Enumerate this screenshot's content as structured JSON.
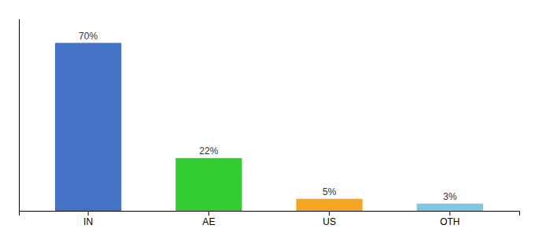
{
  "chart_data": {
    "type": "bar",
    "categories": [
      "IN",
      "AE",
      "US",
      "OTH"
    ],
    "values": [
      70,
      22,
      5,
      3
    ],
    "value_labels": [
      "70%",
      "22%",
      "5%",
      "3%"
    ],
    "data_labels": true,
    "colors": [
      "#4472c4",
      "#33cc33",
      "#f5a623",
      "#7ec8e3"
    ],
    "ylim": [
      0,
      80
    ],
    "tick_labels": "x"
  }
}
